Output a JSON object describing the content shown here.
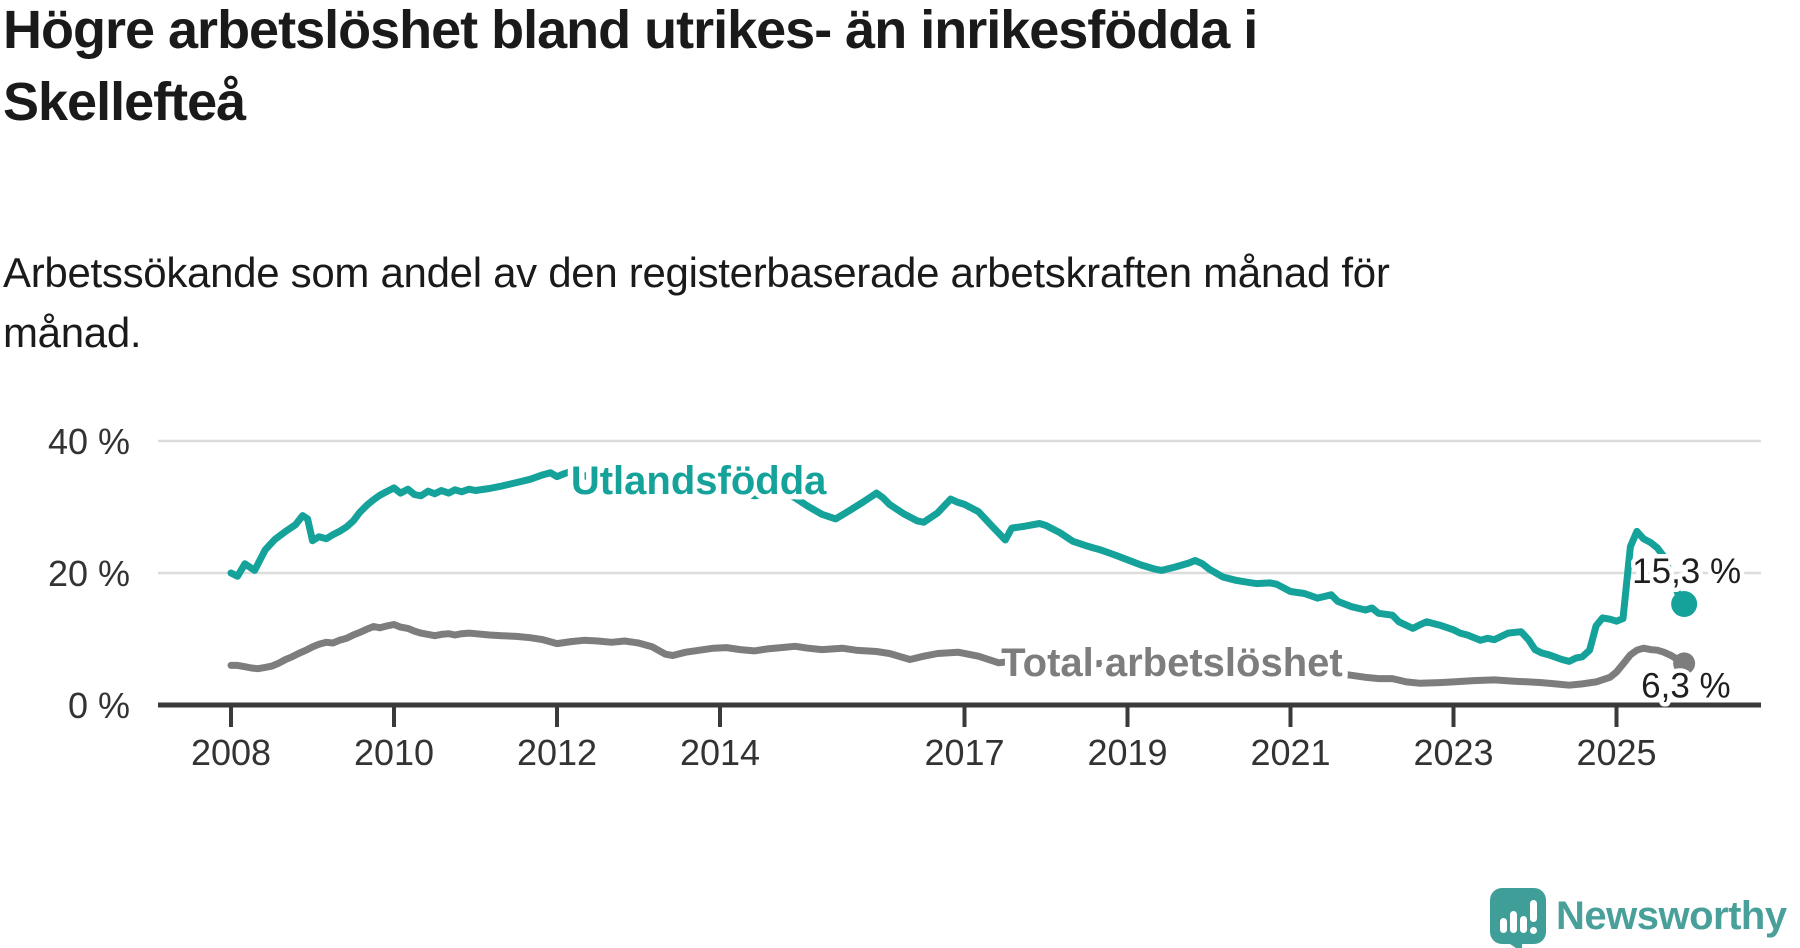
{
  "header": {
    "title": "Högre arbetslöshet bland utrikes- än inrikesfödda i\nSkellefteå",
    "subtitle": "Arbetssökande som andel av den registerbaserade arbetskraften månad för\nmånad."
  },
  "footer": {
    "brand": "Newsworthy",
    "logo_icon": "bar-chart-speech-bubble-icon"
  },
  "colors": {
    "background": "#ffffff",
    "title_text": "#1a1a1a",
    "axis_text": "#333333",
    "gridline": "#dcdcdc",
    "axis_line": "#3a3a3a",
    "value_label_text": "#1f1f1f",
    "series_utlandsfodda": "#14a29a",
    "series_total": "#7d7d7d",
    "logo_teal": "#49a09a"
  },
  "chart_data": {
    "type": "line",
    "title": "Högre arbetslöshet bland utrikes- än inrikesfödda i Skellefteå",
    "subtitle": "Arbetssökande som andel av den registerbaserade arbetskraften månad för månad.",
    "unit": "%",
    "grid": "horizontal-only",
    "legend_position": "inline-labels",
    "x_range": [
      2007.9,
      2026.0
    ],
    "ylim": [
      0,
      42
    ],
    "y_ticks": [
      {
        "value": 40,
        "label": "40 %"
      },
      {
        "value": 20,
        "label": "20 %"
      },
      {
        "value": 0,
        "label": "0 %"
      }
    ],
    "x_ticks": [
      {
        "year": 2008,
        "label": "2008"
      },
      {
        "year": 2010,
        "label": "2010"
      },
      {
        "year": 2012,
        "label": "2012"
      },
      {
        "year": 2014,
        "label": "2014"
      },
      {
        "year": 2017,
        "label": "2017"
      },
      {
        "year": 2019,
        "label": "2019"
      },
      {
        "year": 2021,
        "label": "2021"
      },
      {
        "year": 2023,
        "label": "2023"
      },
      {
        "year": 2025,
        "label": "2025"
      }
    ],
    "series": [
      {
        "id": "utlandsfodda",
        "name": "Utlandsfödda",
        "color": "#14a29a",
        "end_label": "15,3 %",
        "end_value": 15.3,
        "label_anchor": {
          "year": 2012.17,
          "value": 32.0
        },
        "points": [
          [
            2008.0,
            20.0
          ],
          [
            2008.08,
            19.5
          ],
          [
            2008.17,
            21.4
          ],
          [
            2008.29,
            20.4
          ],
          [
            2008.42,
            23.5
          ],
          [
            2008.54,
            25.1
          ],
          [
            2008.67,
            26.3
          ],
          [
            2008.79,
            27.3
          ],
          [
            2008.88,
            28.7
          ],
          [
            2008.94,
            28.2
          ],
          [
            2009.0,
            24.9
          ],
          [
            2009.08,
            25.5
          ],
          [
            2009.17,
            25.2
          ],
          [
            2009.25,
            25.8
          ],
          [
            2009.33,
            26.3
          ],
          [
            2009.42,
            27.0
          ],
          [
            2009.5,
            27.9
          ],
          [
            2009.58,
            29.2
          ],
          [
            2009.67,
            30.3
          ],
          [
            2009.75,
            31.1
          ],
          [
            2009.83,
            31.8
          ],
          [
            2009.92,
            32.4
          ],
          [
            2010.0,
            32.9
          ],
          [
            2010.08,
            32.1
          ],
          [
            2010.17,
            32.7
          ],
          [
            2010.25,
            31.9
          ],
          [
            2010.33,
            31.7
          ],
          [
            2010.42,
            32.4
          ],
          [
            2010.5,
            32.0
          ],
          [
            2010.58,
            32.5
          ],
          [
            2010.67,
            32.1
          ],
          [
            2010.75,
            32.6
          ],
          [
            2010.83,
            32.3
          ],
          [
            2010.92,
            32.7
          ],
          [
            2011.0,
            32.5
          ],
          [
            2011.17,
            32.8
          ],
          [
            2011.33,
            33.2
          ],
          [
            2011.5,
            33.7
          ],
          [
            2011.67,
            34.2
          ],
          [
            2011.83,
            34.9
          ],
          [
            2011.92,
            35.2
          ],
          [
            2012.0,
            34.6
          ],
          [
            2012.08,
            35.0
          ],
          [
            2012.17,
            35.4
          ],
          [
            2012.25,
            35.1
          ],
          [
            2012.42,
            34.4
          ],
          [
            2012.58,
            34.0
          ],
          [
            2012.75,
            33.7
          ],
          [
            2012.92,
            34.2
          ],
          [
            2013.08,
            34.4
          ],
          [
            2013.25,
            33.6
          ],
          [
            2013.42,
            33.0
          ],
          [
            2013.58,
            33.3
          ],
          [
            2013.75,
            33.7
          ],
          [
            2013.92,
            33.3
          ],
          [
            2014.08,
            32.8
          ],
          [
            2014.25,
            32.2
          ],
          [
            2014.42,
            31.7
          ],
          [
            2014.58,
            31.9
          ],
          [
            2014.75,
            32.3
          ],
          [
            2014.92,
            31.4
          ],
          [
            2015.08,
            30.1
          ],
          [
            2015.25,
            28.9
          ],
          [
            2015.42,
            28.2
          ],
          [
            2015.58,
            29.4
          ],
          [
            2015.75,
            30.7
          ],
          [
            2015.92,
            32.1
          ],
          [
            2016.0,
            31.4
          ],
          [
            2016.08,
            30.4
          ],
          [
            2016.25,
            29.0
          ],
          [
            2016.42,
            27.9
          ],
          [
            2016.5,
            27.7
          ],
          [
            2016.67,
            29.1
          ],
          [
            2016.83,
            31.2
          ],
          [
            2016.92,
            30.7
          ],
          [
            2017.0,
            30.4
          ],
          [
            2017.17,
            29.3
          ],
          [
            2017.33,
            27.2
          ],
          [
            2017.5,
            25.0
          ],
          [
            2017.58,
            26.8
          ],
          [
            2017.75,
            27.1
          ],
          [
            2017.92,
            27.5
          ],
          [
            2018.0,
            27.2
          ],
          [
            2018.17,
            26.1
          ],
          [
            2018.33,
            24.8
          ],
          [
            2018.5,
            24.1
          ],
          [
            2018.58,
            23.8
          ],
          [
            2018.67,
            23.5
          ],
          [
            2018.83,
            22.8
          ],
          [
            2019.0,
            22.0
          ],
          [
            2019.17,
            21.2
          ],
          [
            2019.33,
            20.6
          ],
          [
            2019.42,
            20.4
          ],
          [
            2019.58,
            20.9
          ],
          [
            2019.75,
            21.5
          ],
          [
            2019.83,
            21.9
          ],
          [
            2019.92,
            21.4
          ],
          [
            2020.0,
            20.6
          ],
          [
            2020.17,
            19.4
          ],
          [
            2020.33,
            18.9
          ],
          [
            2020.42,
            18.7
          ],
          [
            2020.58,
            18.4
          ],
          [
            2020.75,
            18.5
          ],
          [
            2020.83,
            18.3
          ],
          [
            2021.0,
            17.2
          ],
          [
            2021.17,
            16.9
          ],
          [
            2021.33,
            16.2
          ],
          [
            2021.5,
            16.7
          ],
          [
            2021.58,
            15.7
          ],
          [
            2021.75,
            14.9
          ],
          [
            2021.92,
            14.4
          ],
          [
            2022.0,
            14.7
          ],
          [
            2022.08,
            13.9
          ],
          [
            2022.25,
            13.6
          ],
          [
            2022.33,
            12.6
          ],
          [
            2022.5,
            11.6
          ],
          [
            2022.58,
            12.1
          ],
          [
            2022.67,
            12.6
          ],
          [
            2022.83,
            12.1
          ],
          [
            2023.0,
            11.4
          ],
          [
            2023.08,
            10.9
          ],
          [
            2023.17,
            10.6
          ],
          [
            2023.33,
            9.8
          ],
          [
            2023.42,
            10.1
          ],
          [
            2023.5,
            9.9
          ],
          [
            2023.67,
            10.9
          ],
          [
            2023.83,
            11.1
          ],
          [
            2023.92,
            9.9
          ],
          [
            2024.0,
            8.4
          ],
          [
            2024.08,
            7.9
          ],
          [
            2024.17,
            7.6
          ],
          [
            2024.33,
            6.9
          ],
          [
            2024.42,
            6.6
          ],
          [
            2024.5,
            7.1
          ],
          [
            2024.58,
            7.3
          ],
          [
            2024.67,
            8.3
          ],
          [
            2024.75,
            12.0
          ],
          [
            2024.83,
            13.2
          ],
          [
            2024.92,
            13.0
          ],
          [
            2025.0,
            12.7
          ],
          [
            2025.08,
            13.1
          ],
          [
            2025.17,
            24.0
          ],
          [
            2025.25,
            26.3
          ],
          [
            2025.33,
            25.2
          ],
          [
            2025.42,
            24.6
          ],
          [
            2025.5,
            23.8
          ],
          [
            2025.58,
            22.5
          ],
          [
            2025.67,
            19.5
          ],
          [
            2025.75,
            17.0
          ],
          [
            2025.83,
            15.3
          ]
        ]
      },
      {
        "id": "total",
        "name": "Total arbetslöshet",
        "color": "#7d7d7d",
        "end_label": "6,3 %",
        "end_value": 6.3,
        "label_anchor": {
          "year": 2017.45,
          "value": 4.4
        },
        "points": [
          [
            2008.0,
            6.0
          ],
          [
            2008.08,
            6.0
          ],
          [
            2008.17,
            5.8
          ],
          [
            2008.25,
            5.6
          ],
          [
            2008.33,
            5.5
          ],
          [
            2008.42,
            5.7
          ],
          [
            2008.5,
            5.9
          ],
          [
            2008.58,
            6.3
          ],
          [
            2008.67,
            6.9
          ],
          [
            2008.75,
            7.3
          ],
          [
            2008.83,
            7.8
          ],
          [
            2008.92,
            8.3
          ],
          [
            2009.0,
            8.8
          ],
          [
            2009.08,
            9.2
          ],
          [
            2009.17,
            9.5
          ],
          [
            2009.25,
            9.4
          ],
          [
            2009.33,
            9.8
          ],
          [
            2009.42,
            10.1
          ],
          [
            2009.5,
            10.6
          ],
          [
            2009.58,
            11.0
          ],
          [
            2009.67,
            11.5
          ],
          [
            2009.75,
            11.9
          ],
          [
            2009.83,
            11.7
          ],
          [
            2009.92,
            12.0
          ],
          [
            2010.0,
            12.2
          ],
          [
            2010.08,
            11.8
          ],
          [
            2010.17,
            11.6
          ],
          [
            2010.25,
            11.2
          ],
          [
            2010.33,
            10.9
          ],
          [
            2010.42,
            10.7
          ],
          [
            2010.5,
            10.5
          ],
          [
            2010.58,
            10.7
          ],
          [
            2010.67,
            10.8
          ],
          [
            2010.75,
            10.6
          ],
          [
            2010.83,
            10.8
          ],
          [
            2010.92,
            10.9
          ],
          [
            2011.0,
            10.8
          ],
          [
            2011.17,
            10.6
          ],
          [
            2011.33,
            10.5
          ],
          [
            2011.5,
            10.4
          ],
          [
            2011.67,
            10.2
          ],
          [
            2011.83,
            9.9
          ],
          [
            2012.0,
            9.3
          ],
          [
            2012.17,
            9.6
          ],
          [
            2012.33,
            9.8
          ],
          [
            2012.5,
            9.7
          ],
          [
            2012.67,
            9.5
          ],
          [
            2012.83,
            9.7
          ],
          [
            2013.0,
            9.4
          ],
          [
            2013.17,
            8.8
          ],
          [
            2013.33,
            7.7
          ],
          [
            2013.42,
            7.5
          ],
          [
            2013.58,
            8.0
          ],
          [
            2013.75,
            8.3
          ],
          [
            2013.92,
            8.6
          ],
          [
            2014.08,
            8.7
          ],
          [
            2014.25,
            8.4
          ],
          [
            2014.42,
            8.2
          ],
          [
            2014.58,
            8.5
          ],
          [
            2014.75,
            8.7
          ],
          [
            2014.92,
            8.9
          ],
          [
            2015.08,
            8.6
          ],
          [
            2015.25,
            8.4
          ],
          [
            2015.5,
            8.6
          ],
          [
            2015.67,
            8.3
          ],
          [
            2015.92,
            8.1
          ],
          [
            2016.08,
            7.8
          ],
          [
            2016.33,
            6.9
          ],
          [
            2016.5,
            7.4
          ],
          [
            2016.67,
            7.8
          ],
          [
            2016.92,
            8.0
          ],
          [
            2017.17,
            7.4
          ],
          [
            2017.42,
            6.4
          ],
          [
            2017.58,
            6.6
          ],
          [
            2017.83,
            6.9
          ],
          [
            2018.0,
            6.7
          ],
          [
            2018.25,
            6.3
          ],
          [
            2018.5,
            6.1
          ],
          [
            2018.67,
            6.3
          ],
          [
            2018.92,
            6.1
          ],
          [
            2019.17,
            5.8
          ],
          [
            2019.42,
            5.6
          ],
          [
            2019.67,
            5.8
          ],
          [
            2019.92,
            6.0
          ],
          [
            2020.08,
            6.5
          ],
          [
            2020.33,
            6.9
          ],
          [
            2020.5,
            6.7
          ],
          [
            2020.75,
            6.4
          ],
          [
            2020.92,
            6.0
          ],
          [
            2021.08,
            5.6
          ],
          [
            2021.33,
            5.2
          ],
          [
            2021.5,
            4.9
          ],
          [
            2021.75,
            4.5
          ],
          [
            2021.92,
            4.2
          ],
          [
            2022.08,
            4.0
          ],
          [
            2022.25,
            4.0
          ],
          [
            2022.42,
            3.5
          ],
          [
            2022.58,
            3.3
          ],
          [
            2022.83,
            3.4
          ],
          [
            2023.0,
            3.5
          ],
          [
            2023.25,
            3.7
          ],
          [
            2023.5,
            3.8
          ],
          [
            2023.75,
            3.6
          ],
          [
            2023.92,
            3.5
          ],
          [
            2024.08,
            3.4
          ],
          [
            2024.25,
            3.2
          ],
          [
            2024.42,
            3.0
          ],
          [
            2024.58,
            3.2
          ],
          [
            2024.75,
            3.5
          ],
          [
            2024.92,
            4.2
          ],
          [
            2025.0,
            5.0
          ],
          [
            2025.08,
            6.2
          ],
          [
            2025.17,
            7.6
          ],
          [
            2025.25,
            8.3
          ],
          [
            2025.33,
            8.6
          ],
          [
            2025.42,
            8.4
          ],
          [
            2025.5,
            8.3
          ],
          [
            2025.58,
            8.0
          ],
          [
            2025.67,
            7.5
          ],
          [
            2025.75,
            6.9
          ],
          [
            2025.83,
            6.3
          ]
        ]
      }
    ]
  }
}
